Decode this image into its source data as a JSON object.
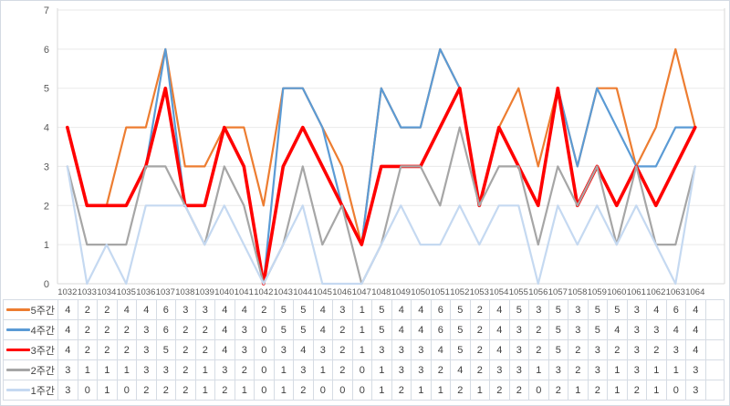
{
  "chart_data": {
    "type": "line",
    "title": "",
    "xlabel": "",
    "ylabel": "",
    "ylim": [
      0,
      7
    ],
    "yticks": [
      0,
      1,
      2,
      3,
      4,
      5,
      6,
      7
    ],
    "grid": true,
    "legend_position": "left-of-data-table",
    "x": [
      "1032",
      "1033",
      "1034",
      "1035",
      "1036",
      "1037",
      "1038",
      "1039",
      "1040",
      "1041",
      "1042",
      "1043",
      "1044",
      "1045",
      "1046",
      "1047",
      "1048",
      "1049",
      "1050",
      "1051",
      "1052",
      "1053",
      "1054",
      "1055",
      "1056",
      "1057",
      "1058",
      "1059",
      "1060",
      "1061",
      "1062",
      "1063",
      "1064"
    ],
    "series": [
      {
        "name": "5주간",
        "color": "#ED7D31",
        "stroke_width": 2.2,
        "values": [
          4,
          2,
          2,
          4,
          4,
          6,
          3,
          3,
          4,
          4,
          2,
          5,
          5,
          4,
          3,
          1,
          5,
          4,
          4,
          6,
          5,
          2,
          4,
          5,
          3,
          5,
          3,
          5,
          5,
          3,
          4,
          6,
          4
        ]
      },
      {
        "name": "4주간",
        "color": "#5B9BD5",
        "stroke_width": 2.2,
        "values": [
          4,
          2,
          2,
          2,
          3,
          6,
          2,
          2,
          4,
          3,
          0,
          5,
          5,
          4,
          2,
          1,
          5,
          4,
          4,
          6,
          5,
          2,
          4,
          3,
          2,
          5,
          3,
          5,
          4,
          3,
          3,
          4,
          4
        ]
      },
      {
        "name": "3주간",
        "color": "#FF0000",
        "stroke_width": 3.6,
        "values": [
          4,
          2,
          2,
          2,
          3,
          5,
          2,
          2,
          4,
          3,
          0,
          3,
          4,
          3,
          2,
          1,
          3,
          3,
          3,
          4,
          5,
          2,
          4,
          3,
          2,
          5,
          2,
          3,
          2,
          3,
          2,
          3,
          4
        ]
      },
      {
        "name": "2주간",
        "color": "#A6A6A6",
        "stroke_width": 2.2,
        "values": [
          3,
          1,
          1,
          1,
          3,
          3,
          2,
          1,
          3,
          2,
          0,
          1,
          3,
          1,
          2,
          0,
          1,
          3,
          3,
          2,
          4,
          2,
          3,
          3,
          1,
          3,
          2,
          3,
          1,
          3,
          1,
          1,
          3
        ]
      },
      {
        "name": "1주간",
        "color": "#C5D9F1",
        "stroke_width": 2.2,
        "values": [
          3,
          0,
          1,
          0,
          2,
          2,
          2,
          1,
          2,
          1,
          0,
          1,
          2,
          0,
          0,
          0,
          1,
          2,
          1,
          1,
          2,
          1,
          2,
          2,
          0,
          2,
          1,
          2,
          1,
          2,
          1,
          0,
          3
        ]
      }
    ]
  },
  "colors": {
    "background": "#FFFFFF",
    "grid": "#E9E9E9",
    "axis": "#D9D9D9",
    "tick_text": "#595959",
    "table_border": "#D6DCE4",
    "table_text": "#404040"
  }
}
